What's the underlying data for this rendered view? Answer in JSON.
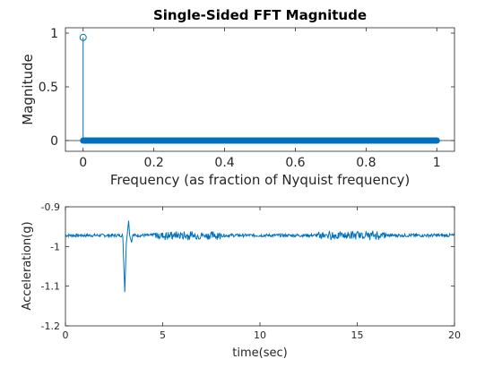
{
  "chart_data": [
    {
      "type": "stem",
      "title": "Single-Sided FFT Magnitude",
      "xlabel": "Frequency (as fraction of Nyquist frequency)",
      "ylabel": "Magnitude",
      "xlim": [
        -0.05,
        1.05
      ],
      "ylim": [
        -0.1,
        1.05
      ],
      "xticks": [
        "0",
        "0.2",
        "0.4",
        "0.6",
        "0.8",
        "1"
      ],
      "yticks": [
        "0",
        "0.5",
        "1"
      ],
      "dc_value": 0.96,
      "baseline_value": 0,
      "color": "#0072bd",
      "grid": false
    },
    {
      "type": "line",
      "title": "",
      "xlabel": "time(sec)",
      "ylabel": "Acceleration(g)",
      "xlim": [
        0,
        20
      ],
      "ylim": [
        -1.2,
        -0.9
      ],
      "xticks": [
        "0",
        "5",
        "10",
        "15",
        "20"
      ],
      "yticks": [
        "-1.2",
        "-1.1",
        "-1",
        "-0.9"
      ],
      "baseline": -0.972,
      "events": [
        {
          "x": 3.05,
          "y": -1.115
        },
        {
          "x": 3.25,
          "y": -0.935
        },
        {
          "x": 3.4,
          "y": -0.99
        }
      ],
      "color": "#0072bd",
      "grid": false
    }
  ]
}
